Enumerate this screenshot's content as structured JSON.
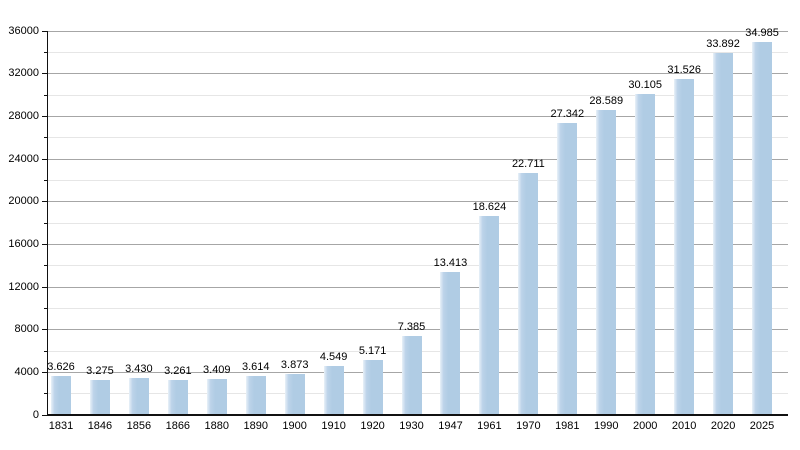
{
  "chart_data": {
    "type": "bar",
    "title": "",
    "xlabel": "",
    "ylabel": "",
    "categories": [
      "1831",
      "1846",
      "1856",
      "1866",
      "1880",
      "1890",
      "1900",
      "1910",
      "1920",
      "1930",
      "1947",
      "1961",
      "1970",
      "1981",
      "1990",
      "2000",
      "2010",
      "2020",
      "2025"
    ],
    "values": [
      3626,
      3275,
      3430,
      3261,
      3409,
      3614,
      3873,
      4549,
      5171,
      7385,
      13413,
      18624,
      22711,
      27342,
      28589,
      30105,
      31526,
      33892,
      34985
    ],
    "value_labels": [
      "3.626",
      "3.275",
      "3.430",
      "3.261",
      "3.409",
      "3.614",
      "3.873",
      "4.549",
      "5.171",
      "7.385",
      "13.413",
      "18.624",
      "22.711",
      "27.342",
      "28.589",
      "30.105",
      "31.526",
      "33.892",
      "34.985"
    ],
    "ylim": [
      0,
      36000
    ],
    "y_major_step": 4000,
    "y_minor_step": 2000,
    "y_tick_labels": [
      "0",
      "4000",
      "8000",
      "12000",
      "16000",
      "20000",
      "24000",
      "28000",
      "32000",
      "36000"
    ],
    "grid": true,
    "legend": "none",
    "colors": {
      "bar_main": "#b0cce4",
      "bar_edge_light": "#e9f1f8",
      "bar_edge_mid": "#bcd3e9",
      "grid_major": "#a6a6a6",
      "grid_minor": "#e6e6e6",
      "axis": "#111111",
      "text": "#000000"
    }
  }
}
